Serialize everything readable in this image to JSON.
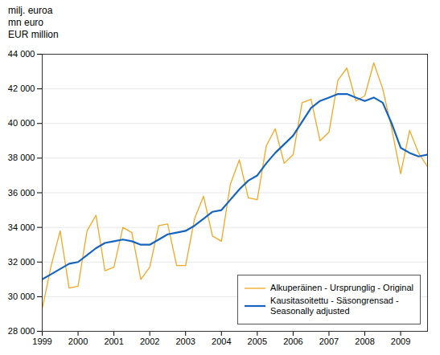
{
  "chart_data": {
    "type": "line",
    "title": "milj. euroa\nmn euro\nEUR million",
    "x": [
      1999.0,
      1999.25,
      1999.5,
      1999.75,
      2000.0,
      2000.25,
      2000.5,
      2000.75,
      2001.0,
      2001.25,
      2001.5,
      2001.75,
      2002.0,
      2002.25,
      2002.5,
      2002.75,
      2003.0,
      2003.25,
      2003.5,
      2003.75,
      2004.0,
      2004.25,
      2004.5,
      2004.75,
      2005.0,
      2005.25,
      2005.5,
      2005.75,
      2006.0,
      2006.25,
      2006.5,
      2006.75,
      2007.0,
      2007.25,
      2007.5,
      2007.75,
      2008.0,
      2008.25,
      2008.5,
      2008.75,
      2009.0,
      2009.25,
      2009.5,
      2009.75
    ],
    "xlim": [
      1999.0,
      2009.75
    ],
    "xticks": [
      1999,
      2000,
      2001,
      2002,
      2003,
      2004,
      2005,
      2006,
      2007,
      2008,
      2009
    ],
    "ylim": [
      28000,
      44000
    ],
    "yticks": [
      {
        "value": 28000,
        "label": "28 000"
      },
      {
        "value": 30000,
        "label": "30 000"
      },
      {
        "value": 32000,
        "label": "32 000"
      },
      {
        "value": 34000,
        "label": "34 000"
      },
      {
        "value": 36000,
        "label": "36 000"
      },
      {
        "value": 38000,
        "label": "38 000"
      },
      {
        "value": 40000,
        "label": "40 000"
      },
      {
        "value": 42000,
        "label": "42 000"
      },
      {
        "value": 44000,
        "label": "44 000"
      }
    ],
    "grid": true,
    "legend": "lower right",
    "series": [
      {
        "name": "Alkuperäinen - Ursprunglig - Original",
        "color": "#f5a623",
        "values": [
          29300,
          31800,
          33800,
          30500,
          30600,
          33800,
          34700,
          31500,
          31700,
          34000,
          33700,
          31000,
          31700,
          34100,
          34200,
          31800,
          31800,
          34500,
          35800,
          33500,
          33200,
          36500,
          37900,
          35700,
          35600,
          38700,
          39700,
          37700,
          38200,
          41200,
          41400,
          39000,
          39500,
          42500,
          43200,
          41300,
          41600,
          43500,
          42000,
          39700,
          37100,
          39600,
          38300,
          37500
        ]
      },
      {
        "name": "Kausitasoitettu - Säsongrensad -\nSeasonally adjusted",
        "color": "#1565c0",
        "values": [
          31000,
          31300,
          31600,
          31900,
          32000,
          32400,
          32800,
          33100,
          33200,
          33300,
          33200,
          33000,
          33000,
          33300,
          33600,
          33700,
          33800,
          34100,
          34500,
          34900,
          35000,
          35600,
          36200,
          36700,
          37000,
          37700,
          38300,
          38800,
          39300,
          40100,
          40900,
          41300,
          41500,
          41700,
          41700,
          41500,
          41300,
          41500,
          41200,
          40000,
          38600,
          38300,
          38100,
          38200
        ]
      }
    ]
  }
}
